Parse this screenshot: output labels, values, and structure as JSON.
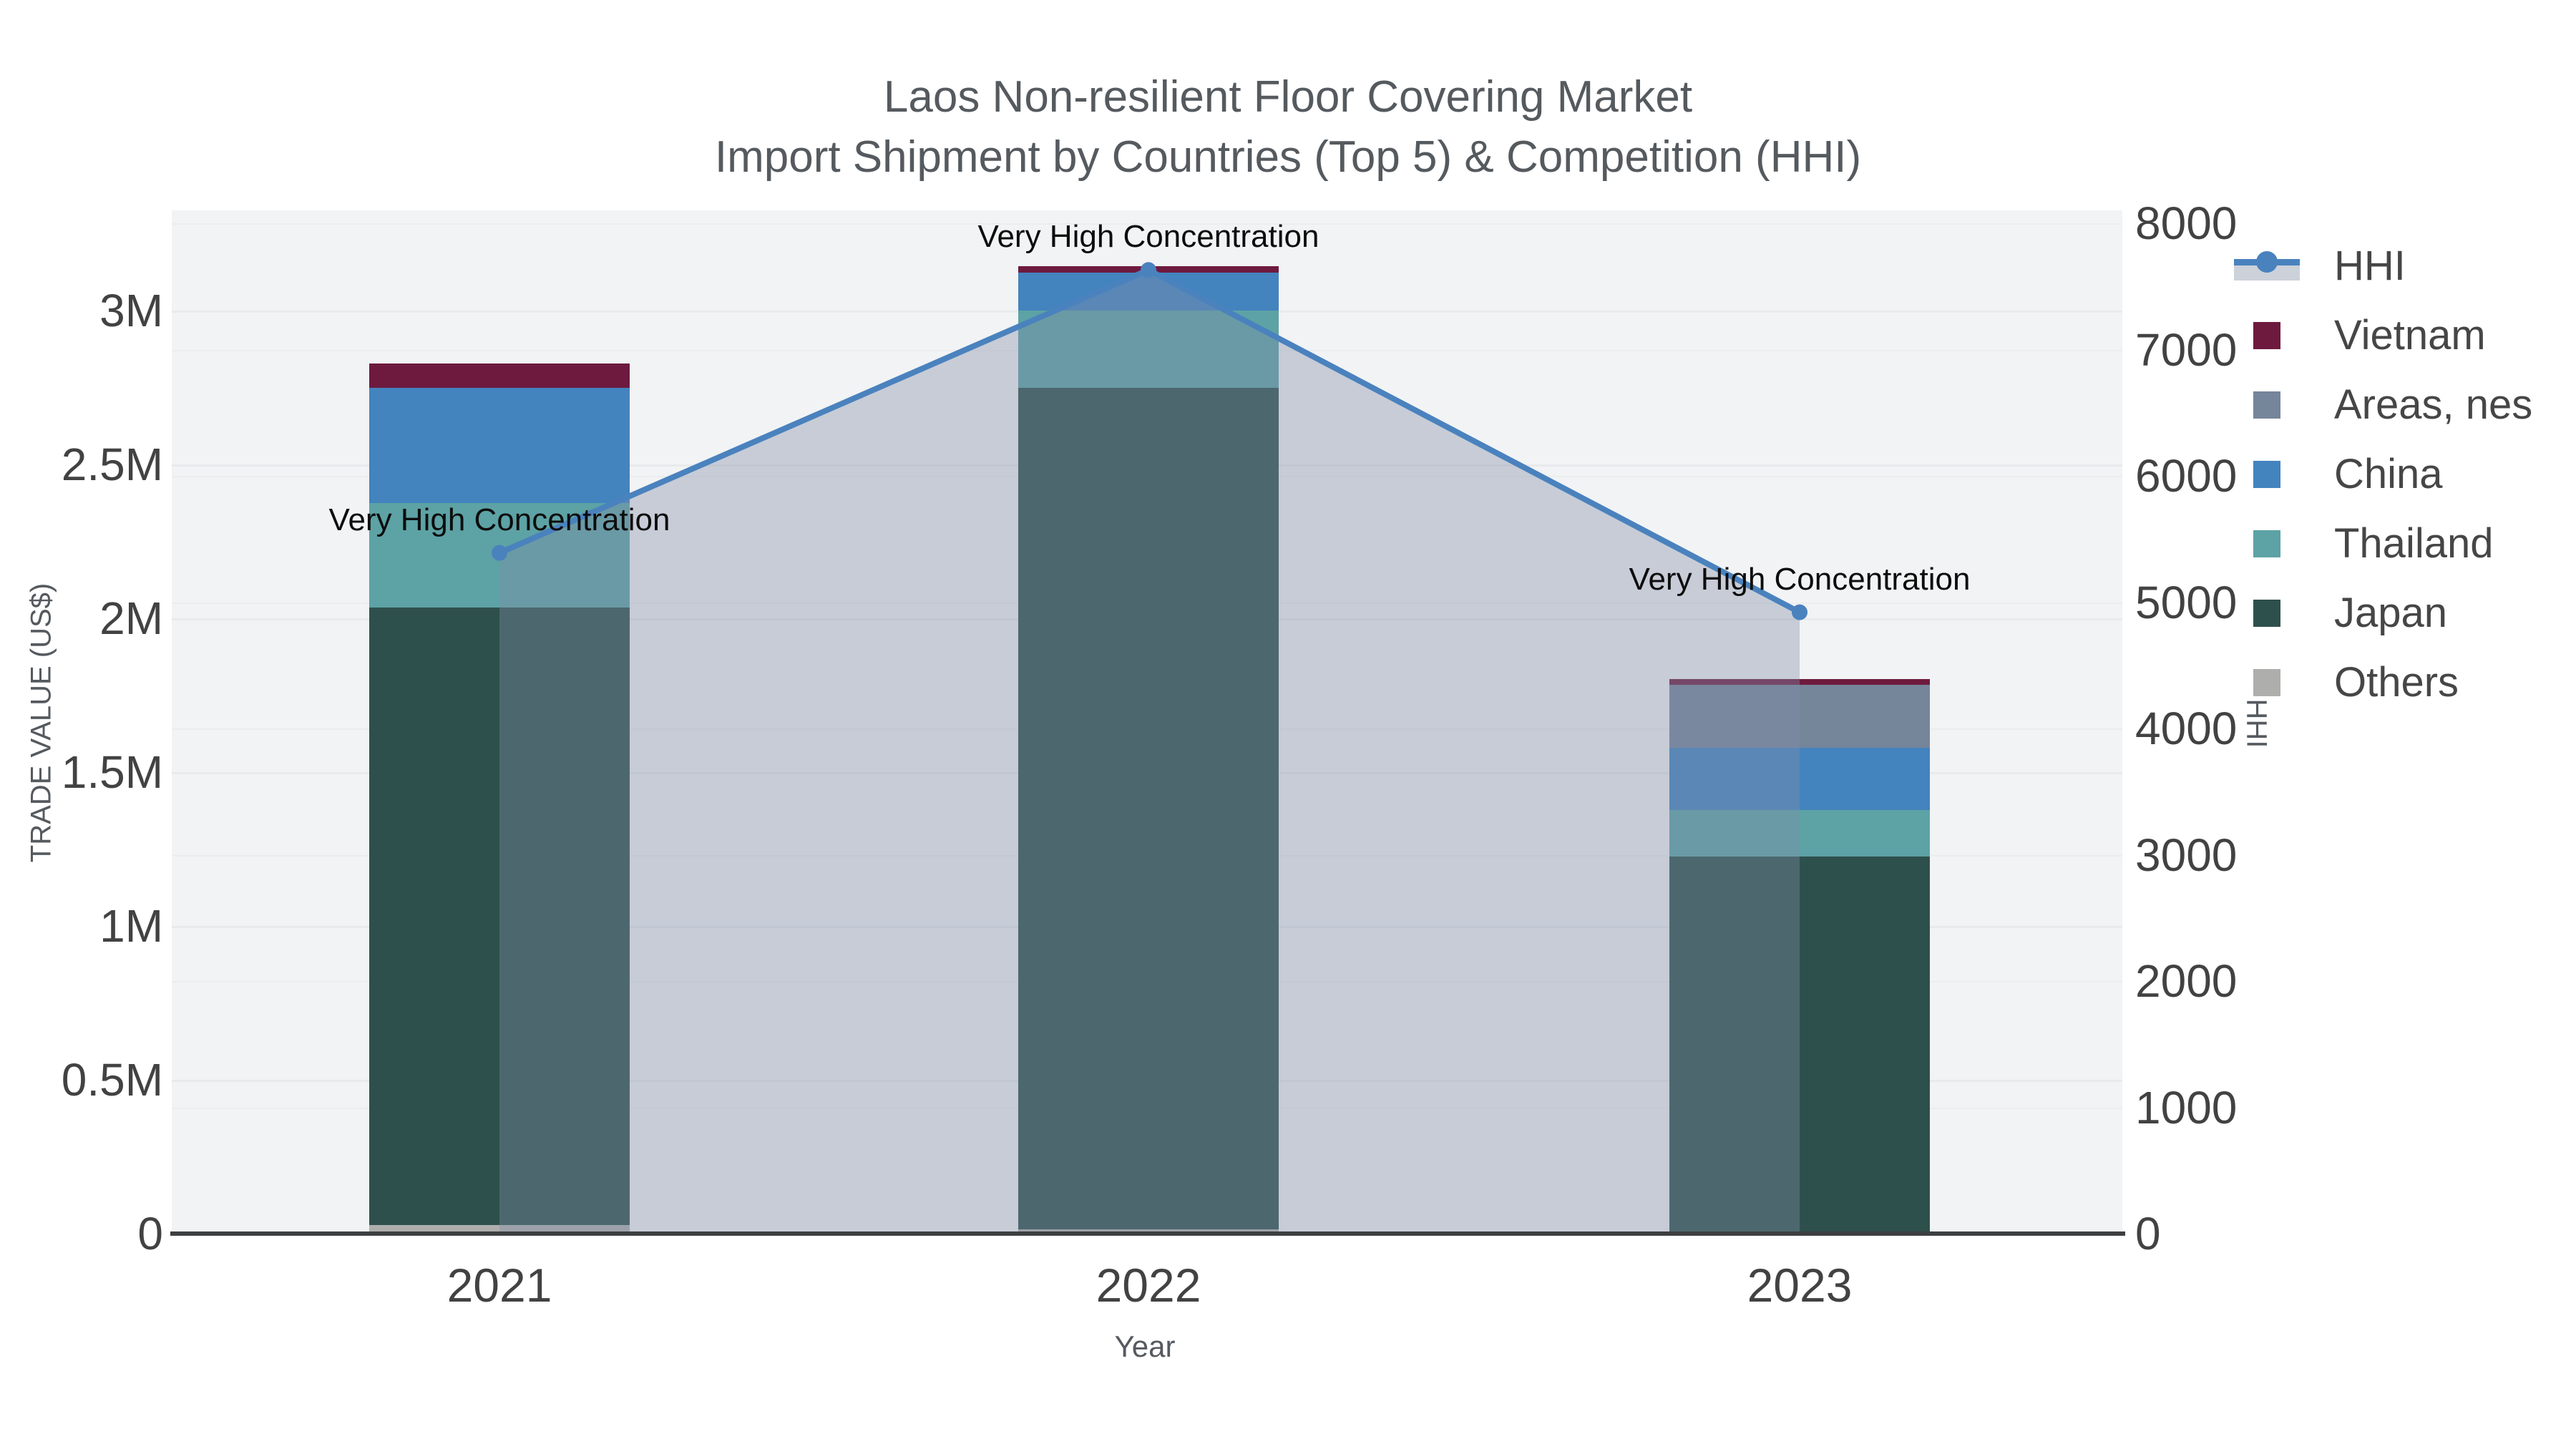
{
  "title": {
    "line1": "Laos Non-resilient Floor Covering Market",
    "line2": "Import Shipment by Countries (Top 5) & Competition (HHI)"
  },
  "axes": {
    "x_title": "Year",
    "y_left_title": "TRADE VALUE (US$)",
    "y_right_title": "HHI",
    "y_left_ticks": [
      {
        "label": "0",
        "value": 0
      },
      {
        "label": "0.5M",
        "value": 500000
      },
      {
        "label": "1M",
        "value": 1000000
      },
      {
        "label": "1.5M",
        "value": 1500000
      },
      {
        "label": "2M",
        "value": 2000000
      },
      {
        "label": "2.5M",
        "value": 2500000
      },
      {
        "label": "3M",
        "value": 3000000
      }
    ],
    "y_right_ticks": [
      {
        "label": "0",
        "value": 0
      },
      {
        "label": "1000",
        "value": 1000
      },
      {
        "label": "2000",
        "value": 2000
      },
      {
        "label": "3000",
        "value": 3000
      },
      {
        "label": "4000",
        "value": 4000
      },
      {
        "label": "5000",
        "value": 5000
      },
      {
        "label": "6000",
        "value": 6000
      },
      {
        "label": "7000",
        "value": 7000
      },
      {
        "label": "8000",
        "value": 8000
      }
    ]
  },
  "legend": {
    "items": [
      {
        "label": "HHI",
        "type": "line",
        "color": "#4a82be"
      },
      {
        "label": "Vietnam",
        "type": "box",
        "color": "#6e1a3f"
      },
      {
        "label": "Areas, nes",
        "type": "box",
        "color": "#75859a"
      },
      {
        "label": "China",
        "type": "box",
        "color": "#4383be"
      },
      {
        "label": "Thailand",
        "type": "box",
        "color": "#5da2a5"
      },
      {
        "label": "Japan",
        "type": "box",
        "color": "#2e504c"
      },
      {
        "label": "Others",
        "type": "box",
        "color": "#aeaeac"
      }
    ]
  },
  "annotations": [
    {
      "text": "Very High Concentration",
      "category": "2021"
    },
    {
      "text": "Very High Concentration",
      "category": "2022"
    },
    {
      "text": "Very High Concentration",
      "category": "2023"
    }
  ],
  "chart_data": {
    "type": "combo",
    "subtype": "stacked-bar + line-area",
    "title": "Laos Non-resilient Floor Covering Market",
    "subtitle": "Import Shipment by Countries (Top 5) & Competition (HHI)",
    "xlabel": "Year",
    "ylabel_left": "TRADE VALUE (US$)",
    "ylabel_right": "HHI",
    "categories": [
      "2021",
      "2022",
      "2023"
    ],
    "bar_series_bottom_to_top": [
      {
        "name": "Others",
        "color": "#aeaeac",
        "values": [
          28000,
          14000,
          6000
        ]
      },
      {
        "name": "Japan",
        "color": "#2e504c",
        "values": [
          2007000,
          2735000,
          1220000
        ]
      },
      {
        "name": "Thailand",
        "color": "#5da2a5",
        "values": [
          340000,
          251000,
          151000
        ]
      },
      {
        "name": "China",
        "color": "#4383be",
        "values": [
          374000,
          123000,
          202000
        ]
      },
      {
        "name": "Areas, nes",
        "color": "#75859a",
        "values": [
          0,
          0,
          205000
        ]
      },
      {
        "name": "Vietnam",
        "color": "#6e1a3f",
        "values": [
          79000,
          21000,
          19000
        ]
      }
    ],
    "bar_totals": [
      2828000,
      3144000,
      1803000
    ],
    "line_series": {
      "name": "HHI",
      "axis": "right",
      "color": "#4a82be",
      "area_fill": "rgba(130,142,168,0.38)",
      "values": [
        5390,
        7630,
        4920
      ]
    },
    "y_left_range": [
      0,
      3330000
    ],
    "y_right_range": [
      0,
      8100
    ],
    "grid": true,
    "legend_position": "right"
  }
}
